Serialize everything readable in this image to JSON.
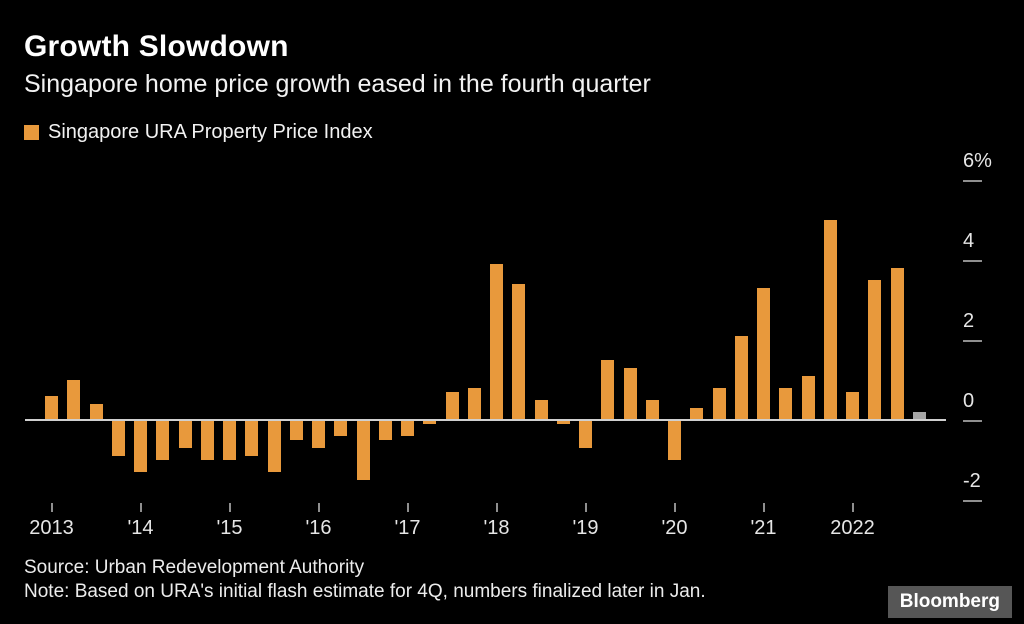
{
  "header": {
    "title": "Growth Slowdown",
    "subtitle": "Singapore home price growth eased in the fourth quarter"
  },
  "legend": {
    "label": "Singapore URA Property Price Index"
  },
  "colors": {
    "background": "#000000",
    "bar": "#E8993C",
    "flash_bar": "#A6A6A6",
    "axis_text": "#E6E6E6",
    "tick": "#8F8F8F",
    "baseline": "#D0D0D0"
  },
  "chart_data": {
    "type": "bar",
    "title": "Singapore URA Property Price Index",
    "unit": "%",
    "categories": [
      "2013 Q1",
      "2013 Q2",
      "2013 Q3",
      "2013 Q4",
      "2014 Q1",
      "2014 Q2",
      "2014 Q3",
      "2014 Q4",
      "2015 Q1",
      "2015 Q2",
      "2015 Q3",
      "2015 Q4",
      "2016 Q1",
      "2016 Q2",
      "2016 Q3",
      "2016 Q4",
      "2017 Q1",
      "2017 Q2",
      "2017 Q3",
      "2017 Q4",
      "2018 Q1",
      "2018 Q2",
      "2018 Q3",
      "2018 Q4",
      "2019 Q1",
      "2019 Q2",
      "2019 Q3",
      "2019 Q4",
      "2020 Q1",
      "2020 Q2",
      "2020 Q3",
      "2020 Q4",
      "2021 Q1",
      "2021 Q2",
      "2021 Q3",
      "2021 Q4",
      "2022 Q1",
      "2022 Q2",
      "2022 Q3",
      "2022 Q4"
    ],
    "values": [
      0.6,
      1.0,
      0.4,
      -0.9,
      -1.3,
      -1.0,
      -0.7,
      -1.0,
      -1.0,
      -0.9,
      -1.3,
      -0.5,
      -0.7,
      -0.4,
      -1.5,
      -0.5,
      -0.4,
      -0.1,
      0.7,
      0.8,
      3.9,
      3.4,
      0.5,
      -0.1,
      -0.7,
      1.5,
      1.3,
      0.5,
      -1.0,
      0.3,
      0.8,
      2.1,
      3.3,
      0.8,
      1.1,
      5.0,
      0.7,
      3.5,
      3.8,
      0.2
    ],
    "flash_index": 39,
    "flash_note": "final bar shown in gray (initial flash estimate for 4Q 2022)",
    "ylim": [
      -2.6,
      6.5
    ],
    "yticks": [
      {
        "label": "6%",
        "value": 6
      },
      {
        "label": "4",
        "value": 4
      },
      {
        "label": "2",
        "value": 2
      },
      {
        "label": "0",
        "value": 0
      },
      {
        "label": "-2",
        "value": -2
      }
    ],
    "xticks": [
      {
        "label": "2013",
        "quarter_index": 0
      },
      {
        "label": "'14",
        "quarter_index": 4
      },
      {
        "label": "'15",
        "quarter_index": 8
      },
      {
        "label": "'16",
        "quarter_index": 12
      },
      {
        "label": "'17",
        "quarter_index": 16
      },
      {
        "label": "'18",
        "quarter_index": 20
      },
      {
        "label": "'19",
        "quarter_index": 24
      },
      {
        "label": "'20",
        "quarter_index": 28
      },
      {
        "label": "'21",
        "quarter_index": 32
      },
      {
        "label": "2022",
        "quarter_index": 36
      }
    ],
    "grid": false,
    "legend_position": "top-left",
    "y_axis_side": "right"
  },
  "footer": {
    "source": "Source: Urban Redevelopment Authority",
    "note": "Note: Based on URA's initial flash estimate for 4Q, numbers finalized later in Jan.",
    "brand": "Bloomberg"
  }
}
